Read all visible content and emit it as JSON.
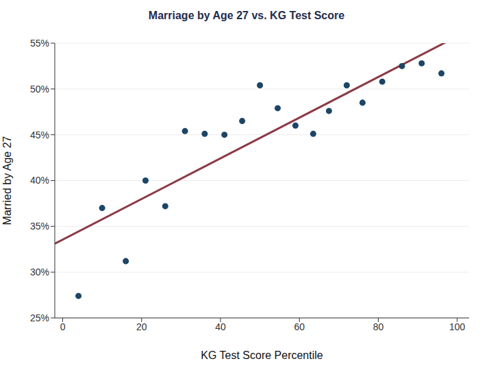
{
  "chart_data": {
    "type": "scatter",
    "title": "Marriage by Age 27 vs. KG Test Score",
    "x_label": "KG Test Score Percentile",
    "y_label": "Married by Age 27",
    "x": [
      4,
      10,
      16,
      21,
      26,
      31,
      36,
      41,
      45.5,
      50,
      54.5,
      59,
      63.5,
      67.5,
      72,
      76,
      81,
      86,
      91,
      96
    ],
    "values": [
      27.4,
      37.0,
      31.2,
      40.0,
      37.2,
      45.4,
      45.1,
      45.0,
      46.5,
      50.4,
      47.9,
      46.0,
      45.1,
      47.6,
      50.4,
      48.5,
      50.8,
      52.5,
      52.8,
      51.7
    ],
    "color": "#1c4566",
    "marker": "circle",
    "fit_line": {
      "x": [
        -2,
        98
      ],
      "values": [
        33.1,
        55.3
      ],
      "color": "#8b3a46",
      "line_style": "solid"
    },
    "xlim": [
      -2,
      103
    ],
    "xticks": [
      0,
      20,
      40,
      60,
      80,
      100
    ],
    "ylim": [
      25,
      55
    ],
    "yticks": [
      {
        "value": 25,
        "label": "25%"
      },
      {
        "value": 30,
        "label": "30%"
      },
      {
        "value": 35,
        "label": "35%"
      },
      {
        "value": 40,
        "label": "40%"
      },
      {
        "value": 45,
        "label": "45%"
      },
      {
        "value": 50,
        "label": "50%"
      },
      {
        "value": 55,
        "label": "55%"
      }
    ],
    "grid": true
  }
}
